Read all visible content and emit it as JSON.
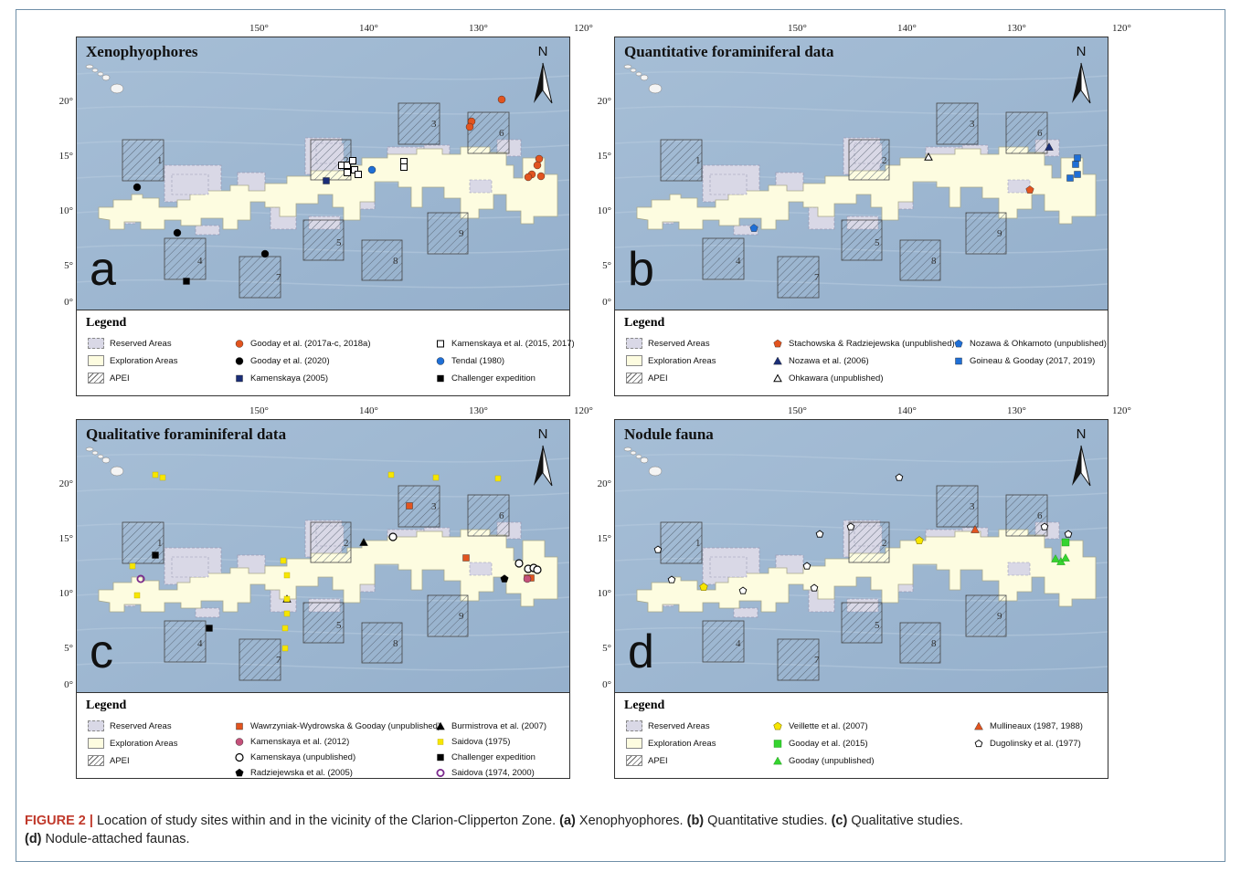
{
  "lon_labels": [
    "150°",
    "140°",
    "130°",
    "120°"
  ],
  "lat_labels": [
    "20°",
    "15°",
    "10°",
    "5°",
    "0°"
  ],
  "north": "N",
  "apei_numbers": [
    "1",
    "2",
    "3",
    "4",
    "5",
    "6",
    "7",
    "8",
    "9"
  ],
  "legend_title": "Legend",
  "base_legend": [
    "Reserved Areas",
    "Exploration Areas",
    "APEI"
  ],
  "colors": {
    "reserved": "#d9d8e6",
    "exploration": "#fdfce0",
    "ocean": "#9fb9d4",
    "orange": "#e2541f",
    "blue": "#1f6fd6",
    "navy": "#1b2e78",
    "yellow": "#f7e600",
    "green": "#35d42f",
    "pink": "#c4517a",
    "purple": "#7a2a8c"
  },
  "panels": [
    {
      "title": "Xenophyophores",
      "letter": "a",
      "legend": [
        {
          "label": "Gooday et al. (2017a-c, 2018a)",
          "icon": "orange-circle"
        },
        {
          "label": "Gooday et al. (2020)",
          "icon": "black-circle"
        },
        {
          "label": "Kamenskaya (2005)",
          "icon": "navy-square"
        },
        {
          "label": "Kamenskaya et al. (2015, 2017)",
          "icon": "open-square"
        },
        {
          "label": "Tendal (1980)",
          "icon": "blue-circle"
        },
        {
          "label": "Challenger expedition",
          "icon": "black-square"
        }
      ]
    },
    {
      "title": "Quantitative foraminiferal data",
      "letter": "b",
      "legend": [
        {
          "label": "Stachowska & Radziejewska (unpublished)",
          "icon": "orange-pentagon"
        },
        {
          "label": "Nozawa et al. (2006)",
          "icon": "navy-triangle"
        },
        {
          "label": "Ohkawara (unpublished)",
          "icon": "open-triangle"
        },
        {
          "label": "Nozawa & Ohkamoto (unpublished)",
          "icon": "blue-pentagon"
        },
        {
          "label": "Goineau & Gooday (2017, 2019)",
          "icon": "blue-square"
        }
      ]
    },
    {
      "title": "Qualitative foraminiferal data",
      "letter": "c",
      "legend": [
        {
          "label": "Wawrzyniak-Wydrowska & Gooday (unpublished)",
          "icon": "orange-square"
        },
        {
          "label": "Kamenskaya et al. (2012)",
          "icon": "pink-circle"
        },
        {
          "label": "Kamenskaya (unpublished)",
          "icon": "open-circle"
        },
        {
          "label": "Radziejewska et al. (2005)",
          "icon": "black-pentagon"
        },
        {
          "label": "Burmistrova et al. (2007)",
          "icon": "black-triangle"
        },
        {
          "label": "Saidova (1975)",
          "icon": "yellow-square"
        },
        {
          "label": "Challenger expedition",
          "icon": "black-square"
        },
        {
          "label": "Saidova (1974, 2000)",
          "icon": "purple-ring"
        }
      ]
    },
    {
      "title": "Nodule fauna",
      "letter": "d",
      "legend": [
        {
          "label": "Veillette et al. (2007)",
          "icon": "yellow-pentagon"
        },
        {
          "label": "Gooday et al. (2015)",
          "icon": "green-square"
        },
        {
          "label": "Gooday (unpublished)",
          "icon": "green-triangle"
        },
        {
          "label": "Mullineaux (1987, 1988)",
          "icon": "orange-triangle"
        },
        {
          "label": "Dugolinsky et al. (1977)",
          "icon": "open-pentagon"
        }
      ]
    }
  ],
  "caption": {
    "figure": "FIGURE 2 |",
    "text": " Location of study sites within and in the vicinity of the Clarion-Clipperton Zone. ",
    "a_tag": "(a)",
    "a_text": " Xenophyophores. ",
    "b_tag": "(b)",
    "b_text": " Quantitative studies. ",
    "c_tag": "(c)",
    "c_text": " Qualitative studies.",
    "d_tag": "(d)",
    "d_text": " Nodule-attached faunas."
  }
}
